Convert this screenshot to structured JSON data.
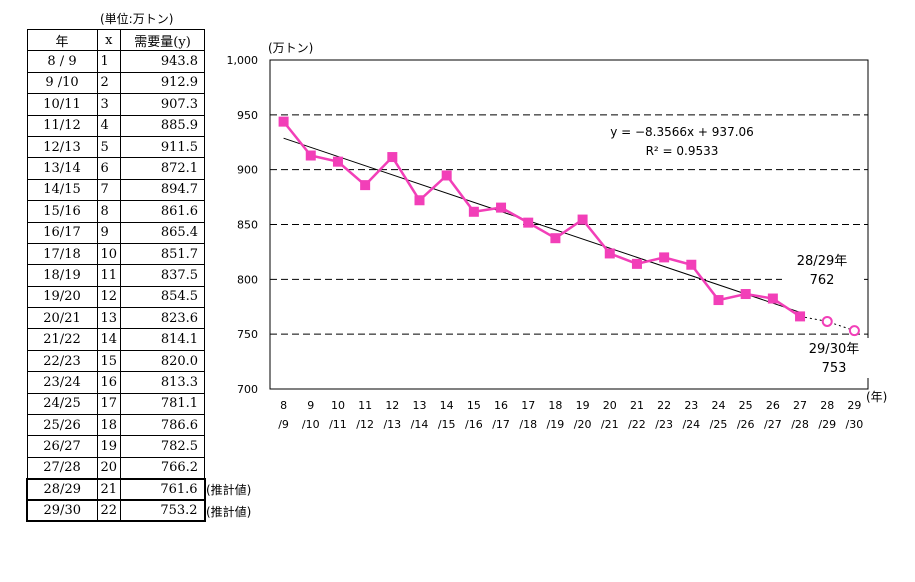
{
  "table": {
    "unit_note": "(単位:万トン)",
    "headers": [
      "年",
      "x",
      "需要量(y)"
    ],
    "rows": [
      {
        "year": "8 / 9",
        "x": "1",
        "value": "943.8"
      },
      {
        "year": "9 /10",
        "x": "2",
        "value": "912.9"
      },
      {
        "year": "10/11",
        "x": "3",
        "value": "907.3"
      },
      {
        "year": "11/12",
        "x": "4",
        "value": "885.9"
      },
      {
        "year": "12/13",
        "x": "5",
        "value": "911.5"
      },
      {
        "year": "13/14",
        "x": "6",
        "value": "872.1"
      },
      {
        "year": "14/15",
        "x": "7",
        "value": "894.7"
      },
      {
        "year": "15/16",
        "x": "8",
        "value": "861.6"
      },
      {
        "year": "16/17",
        "x": "9",
        "value": "865.4"
      },
      {
        "year": "17/18",
        "x": "10",
        "value": "851.7"
      },
      {
        "year": "18/19",
        "x": "11",
        "value": "837.5"
      },
      {
        "year": "19/20",
        "x": "12",
        "value": "854.5"
      },
      {
        "year": "20/21",
        "x": "13",
        "value": "823.6"
      },
      {
        "year": "21/22",
        "x": "14",
        "value": "814.1"
      },
      {
        "year": "22/23",
        "x": "15",
        "value": "820.0"
      },
      {
        "year": "23/24",
        "x": "16",
        "value": "813.3"
      },
      {
        "year": "24/25",
        "x": "17",
        "value": "781.1"
      },
      {
        "year": "25/26",
        "x": "18",
        "value": "786.6"
      },
      {
        "year": "26/27",
        "x": "19",
        "value": "782.5"
      },
      {
        "year": "27/28",
        "x": "20",
        "value": "766.2"
      },
      {
        "year": "28/29",
        "x": "21",
        "value": "761.6",
        "note": "(推計値)"
      },
      {
        "year": "29/30",
        "x": "22",
        "value": "753.2",
        "note": "(推計値)"
      }
    ]
  },
  "chart_data": {
    "type": "line",
    "title": "",
    "ylabel": "(万トン)",
    "xlabel": "(年)",
    "ylim": [
      700,
      1000
    ],
    "yticks": [
      700,
      750,
      800,
      850,
      900,
      950,
      1000
    ],
    "ytick_labels": [
      "700",
      "750",
      "800",
      "850",
      "900",
      "950",
      "1,000"
    ],
    "grid": "horizontal dashed",
    "categories_top": [
      "8",
      "9",
      "10",
      "11",
      "12",
      "13",
      "14",
      "15",
      "16",
      "17",
      "18",
      "19",
      "20",
      "21",
      "22",
      "23",
      "24",
      "25",
      "26",
      "27",
      "28",
      "29"
    ],
    "categories_bottom": [
      "/9",
      "/10",
      "/11",
      "/12",
      "/13",
      "/14",
      "/15",
      "/16",
      "/17",
      "/18",
      "/19",
      "/20",
      "/21",
      "/22",
      "/23",
      "/24",
      "/25",
      "/26",
      "/27",
      "/28",
      "/29",
      "/30"
    ],
    "series": [
      {
        "values": [
          943.8,
          912.9,
          907.3,
          885.9,
          911.5,
          872.1,
          894.7,
          861.6,
          865.4,
          851.7,
          837.5,
          854.5,
          823.6,
          814.1,
          820.0,
          813.3,
          781.1,
          786.6,
          782.5,
          766.2
        ]
      }
    ],
    "estimates": [
      761.6,
      753.2
    ],
    "trendline": {
      "slope": -8.3566,
      "intercept": 937.06
    },
    "equation_text": "y = −8.3566x + 937.06",
    "r2_text": "R² = 0.9533",
    "annotations": [
      {
        "line1": "28/29年",
        "line2": "762"
      },
      {
        "line1": "29/30年",
        "line2": "753"
      }
    ],
    "colors": {
      "series": "#f23fb8",
      "trend": "#000000",
      "grid": "#000000"
    }
  }
}
